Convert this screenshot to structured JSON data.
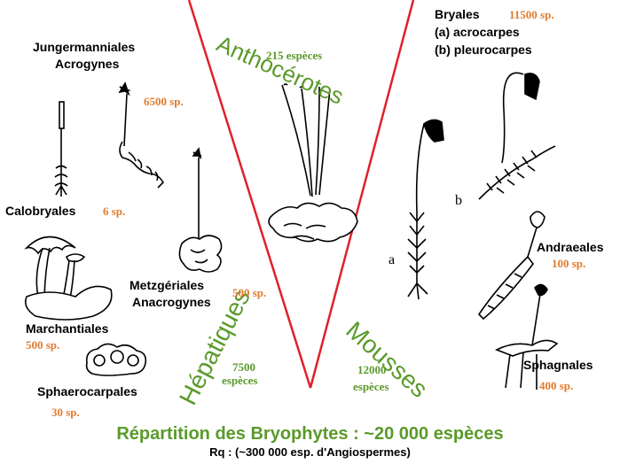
{
  "groups": {
    "anthocerotes": {
      "name": "Anthocérotes",
      "count": "215 espèces"
    },
    "hepatiques": {
      "name": "Hépatiques",
      "count_num": "7500",
      "count_unit": "espèces"
    },
    "mousses": {
      "name": "Mousses",
      "count_num": "12000",
      "count_unit": "espèces"
    }
  },
  "orders": {
    "jungermanniales": {
      "line1": "Jungermanniales",
      "line2": "Acrogynes",
      "count": "6500 sp."
    },
    "calobryales": {
      "name": "Calobryales",
      "count": "6 sp."
    },
    "metzgeriales": {
      "line1": "Metzgériales",
      "line2": "Anacrogynes",
      "count": "500 sp."
    },
    "marchantiales": {
      "name": "Marchantiales",
      "count": "500 sp."
    },
    "sphaerocarpales": {
      "name": "Sphaerocarpales",
      "count": "30 sp."
    },
    "bryales": {
      "name": "Bryales",
      "count": "11500 sp.",
      "sub_a": "(a) acrocarpes",
      "sub_b": "(b) pleurocarpes"
    },
    "andraeales": {
      "name": "Andraeales",
      "count": "100 sp."
    },
    "sphagnales": {
      "name": "Sphagnales",
      "count": "400 sp."
    }
  },
  "figure_letters": {
    "a": "a",
    "b": "b"
  },
  "footer": {
    "title": "Répartition des Bryophytes : ~20 000 espèces",
    "note": "Rq : (~300 000 esp. d'Angiospermes)"
  },
  "colors": {
    "accent_green": "#5a9a2a",
    "count_orange": "#e07b2e",
    "divider_red": "#e0202a"
  }
}
